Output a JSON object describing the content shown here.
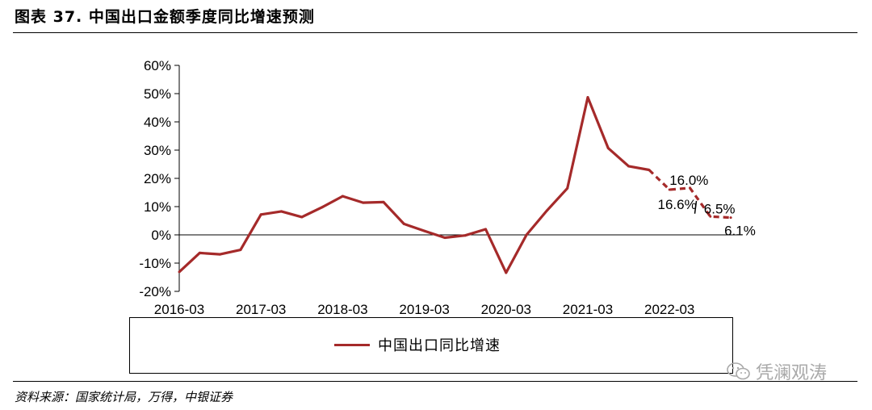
{
  "header": {
    "title": "图表 37. 中国出口金额季度同比增速预测"
  },
  "footer": {
    "source": "资料来源：国家统计局，万得，中银证券"
  },
  "watermark": {
    "text": "凭澜观涛",
    "icon": "wechat-icon"
  },
  "colors": {
    "series": "#a52a2a",
    "axis": "#000000"
  },
  "chart_data": {
    "type": "line",
    "title": "",
    "xlabel": "",
    "ylabel": "",
    "ylim": [
      -20,
      60
    ],
    "yticks": [
      "-20%",
      "-10%",
      "0%",
      "10%",
      "20%",
      "30%",
      "40%",
      "50%",
      "60%"
    ],
    "xtick_labels": [
      "2016-03",
      "2017-03",
      "2018-03",
      "2019-03",
      "2020-03",
      "2021-03",
      "2022-03"
    ],
    "legend": {
      "position": "bottom",
      "entries": [
        "中国出口同比增速"
      ]
    },
    "grid": false,
    "series": [
      {
        "name": "中国出口同比增速",
        "x": [
          "2016-03",
          "2016-06",
          "2016-09",
          "2016-12",
          "2017-03",
          "2017-06",
          "2017-09",
          "2017-12",
          "2018-03",
          "2018-06",
          "2018-09",
          "2018-12",
          "2019-03",
          "2019-06",
          "2019-09",
          "2019-12",
          "2020-03",
          "2020-06",
          "2020-09",
          "2020-12",
          "2021-03",
          "2021-06",
          "2021-09",
          "2021-12",
          "2022-03",
          "2022-06",
          "2022-09",
          "2022-12"
        ],
        "values": [
          -13.1,
          -6.4,
          -6.9,
          -5.3,
          7.2,
          8.3,
          6.3,
          9.8,
          13.7,
          11.4,
          11.6,
          3.9,
          1.4,
          -1.0,
          -0.2,
          2.0,
          -13.4,
          0.0,
          8.6,
          16.5,
          48.7,
          30.7,
          24.3,
          23.0,
          16.0,
          16.6,
          6.5,
          6.1
        ],
        "forecast_from": "2021-12"
      }
    ],
    "data_labels": [
      {
        "text": "16.0%",
        "x": "2022-03",
        "value": 16.0
      },
      {
        "text": "16.6%",
        "x": "2022-06",
        "value": 16.6
      },
      {
        "text": "6.5%",
        "x": "2022-09",
        "value": 6.5
      },
      {
        "text": "6.1%",
        "x": "2022-12",
        "value": 6.1
      }
    ]
  }
}
